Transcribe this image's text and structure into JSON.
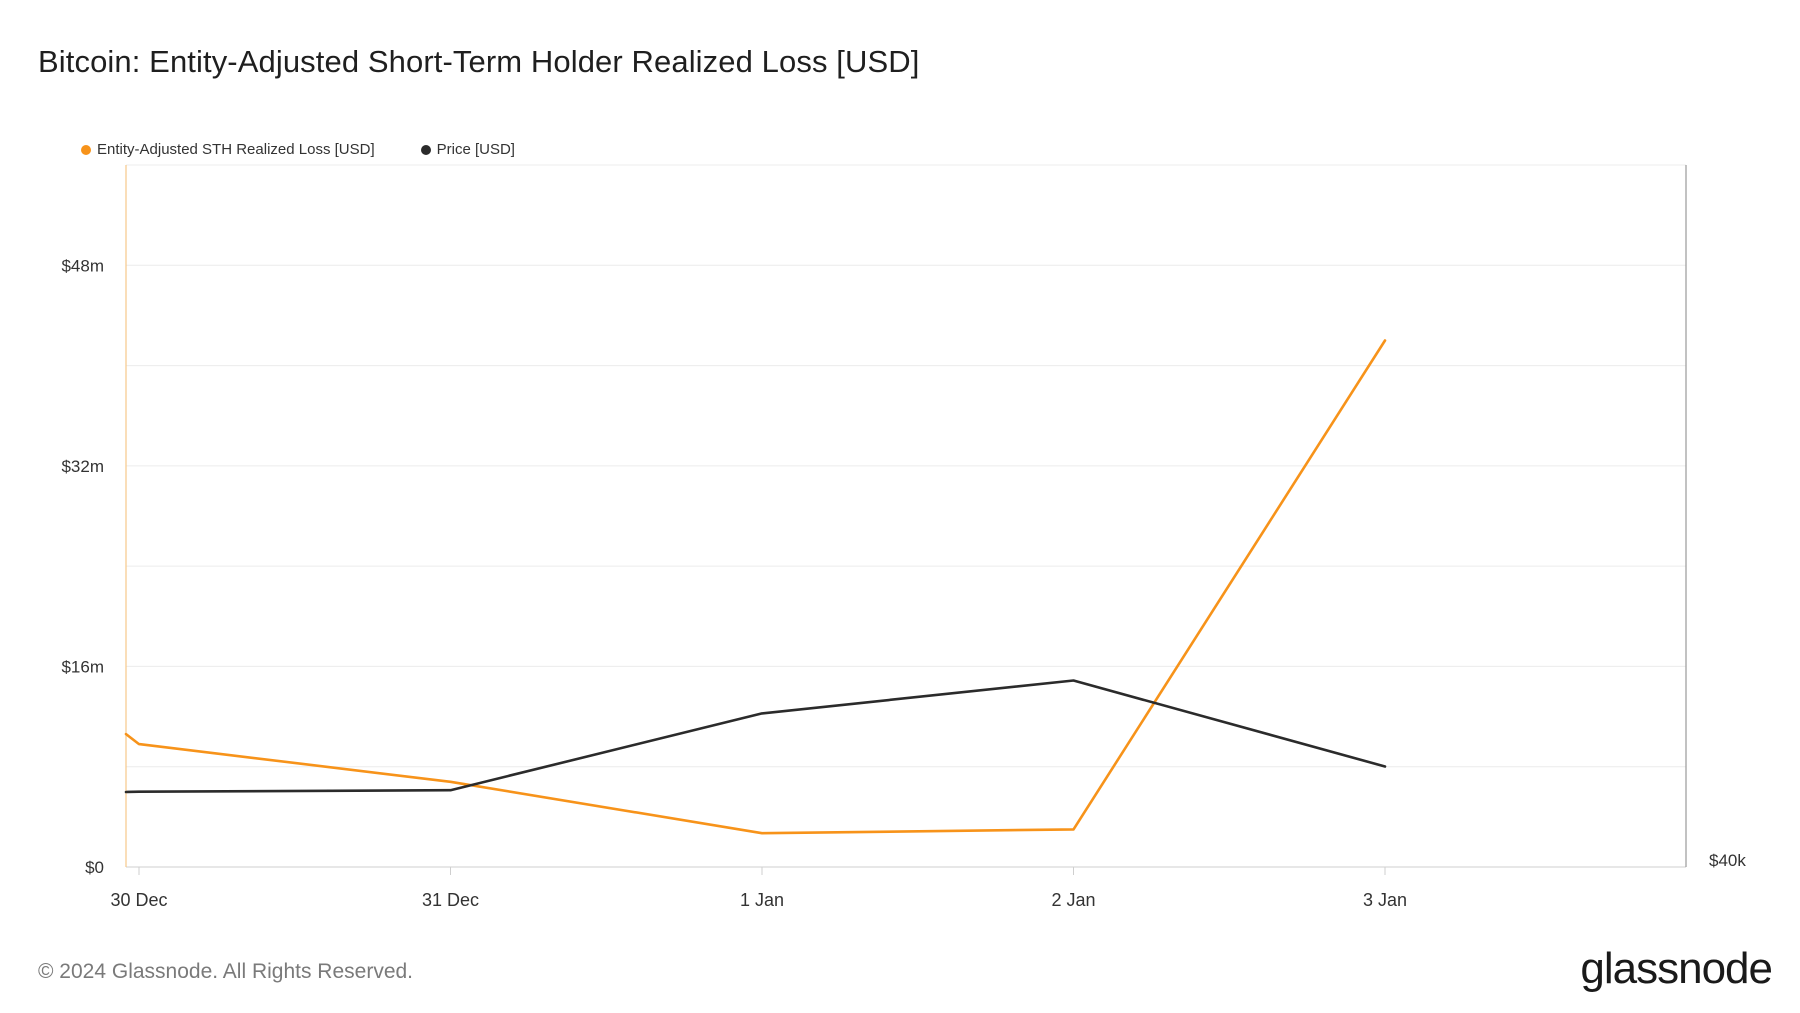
{
  "chart_data": {
    "type": "line",
    "title": "Bitcoin: Entity-Adjusted Short-Term Holder Realized Loss [USD]",
    "x_ticks": [
      "30 Dec",
      "31 Dec",
      "1 Jan",
      "2 Jan",
      "3 Jan"
    ],
    "y_left_ticks": [
      "$0",
      "$16m",
      "$32m",
      "$48m"
    ],
    "y_left_values": [
      0,
      16000000,
      32000000,
      48000000
    ],
    "y_left_range": [
      0,
      56000000
    ],
    "y_right_ticks": [
      "$40k"
    ],
    "grid": true,
    "legend_position": "top-left",
    "series": [
      {
        "name": "Entity-Adjusted STH Realized Loss [USD]",
        "color": "#f7931a",
        "axis": "left",
        "x": [
          "2023-12-29",
          "2023-12-30",
          "2023-12-31",
          "2024-01-01",
          "2024-01-02",
          "2024-01-03"
        ],
        "values": [
          10600000,
          9800000,
          6800000,
          2700000,
          3000000,
          42000000
        ]
      },
      {
        "name": "Price [USD]",
        "color": "#2b2b2b",
        "axis": "right",
        "x": [
          "2023-12-29",
          "2023-12-30",
          "2023-12-31",
          "2024-01-01",
          "2024-01-02",
          "2024-01-03"
        ],
        "values": [
          42050,
          42060,
          42100,
          44200,
          45100,
          42750
        ],
        "range": [
          40000,
          59200
        ]
      }
    ]
  },
  "footer": {
    "copyright": "© 2024 Glassnode. All Rights Reserved.",
    "brand": "glassnode"
  }
}
